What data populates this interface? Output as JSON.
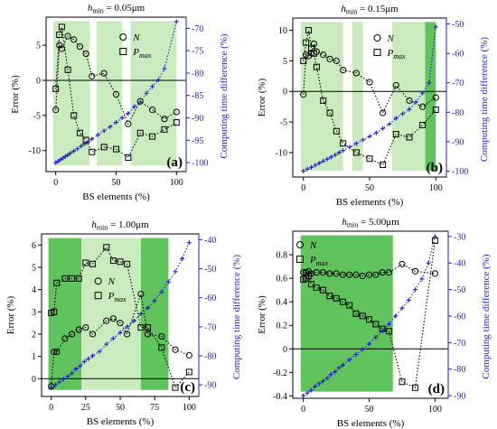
{
  "figure_title": "",
  "chart_data": [
    {
      "type": "line",
      "panel_label": "(a)",
      "title_var": "h",
      "title_sub": "min",
      "title_rest": " = 0.05μm",
      "xlabel": "BS elements (%)",
      "ylabel": "Error (%)",
      "y2label": "Computing time difference (%)",
      "xlim": [
        -8,
        108
      ],
      "ylim": [
        -13,
        9
      ],
      "y2lim": [
        -102,
        -67.5
      ],
      "xticks": [
        0,
        50,
        100
      ],
      "yticks": [
        -10,
        -5,
        0,
        5
      ],
      "y2ticks": [
        -100,
        -95,
        -90,
        -85,
        -80,
        -75,
        -70
      ],
      "legend_position": "top-center",
      "shades": [
        {
          "x0": -2,
          "x1": 28,
          "color": "#c9ebbe"
        },
        {
          "x0": 34,
          "x1": 55,
          "color": "#c9ebbe"
        },
        {
          "x0": 62,
          "x1": 100,
          "color": "#c9ebbe"
        }
      ],
      "series": [
        {
          "name": "N",
          "marker": "circle",
          "axis": "left",
          "x": [
            0,
            3,
            5,
            10,
            15,
            20,
            25,
            30,
            40,
            50,
            60,
            70,
            80,
            90,
            100
          ],
          "y": [
            -4.2,
            5.0,
            4.5,
            6.3,
            5.8,
            4.8,
            3.8,
            0.6,
            1.0,
            -2.0,
            -6.2,
            -3.0,
            -4.2,
            -5.5,
            -4.5
          ]
        },
        {
          "name": "P",
          "name_sub": "max",
          "marker": "square",
          "axis": "left",
          "x": [
            0,
            3,
            5,
            10,
            15,
            20,
            25,
            30,
            40,
            50,
            60,
            70,
            80,
            90,
            100
          ],
          "y": [
            -1.2,
            6.5,
            7.6,
            1.5,
            -5.0,
            -7.5,
            -8.5,
            -10.2,
            -9.5,
            -9.8,
            -11.0,
            -7.5,
            -8.0,
            -7.0,
            -6.0
          ]
        },
        {
          "name": "",
          "marker": "plus",
          "axis": "right",
          "x": [
            0,
            2,
            4,
            6,
            8,
            10,
            12,
            15,
            18,
            21,
            24,
            27,
            30,
            35,
            40,
            45,
            50,
            55,
            60,
            65,
            70,
            75,
            80,
            85,
            90,
            100
          ],
          "y": [
            -100,
            -99.7,
            -99.3,
            -99,
            -98.6,
            -98.3,
            -97.9,
            -97.4,
            -96.9,
            -96.3,
            -95.8,
            -95.3,
            -94.7,
            -93.8,
            -92.9,
            -92,
            -91,
            -90,
            -89,
            -87.5,
            -86.5,
            -84.5,
            -83,
            -81.5,
            -79,
            -68.5
          ]
        }
      ],
      "hline": 0
    },
    {
      "type": "line",
      "panel_label": "(b)",
      "title_var": "h",
      "title_sub": "min",
      "title_rest": " = 0.15μm",
      "xlabel": "BS elements (%)",
      "ylabel": "Error (%)",
      "y2label": "Computing time difference (%)",
      "xlim": [
        -8,
        108
      ],
      "ylim": [
        -14,
        12
      ],
      "y2lim": [
        -102,
        -48
      ],
      "xticks": [
        0,
        50,
        100
      ],
      "yticks": [
        -10,
        -5,
        0,
        5,
        10
      ],
      "y2ticks": [
        -100,
        -90,
        -80,
        -70,
        -60,
        -50
      ],
      "legend_position": "top-center",
      "shades": [
        {
          "x0": -2,
          "x1": 30,
          "color": "#c9ebbe"
        },
        {
          "x0": 37,
          "x1": 45,
          "color": "#c9ebbe"
        },
        {
          "x0": 67,
          "x1": 92,
          "color": "#c9ebbe"
        },
        {
          "x0": 92,
          "x1": 100,
          "color": "#5fc45b"
        }
      ],
      "series": [
        {
          "name": "N",
          "marker": "circle",
          "axis": "left",
          "x": [
            0,
            2,
            4,
            6,
            8,
            10,
            15,
            20,
            25,
            30,
            40,
            50,
            60,
            70,
            80,
            90,
            100
          ],
          "y": [
            -0.5,
            6.0,
            5.8,
            6.3,
            7.8,
            6.5,
            6.0,
            5.3,
            5.0,
            3.5,
            3.0,
            1.5,
            -3.5,
            1.0,
            -1.5,
            -2.5,
            -1.0
          ]
        },
        {
          "name": "P",
          "name_sub": "max",
          "marker": "square",
          "axis": "left",
          "x": [
            0,
            2,
            4,
            6,
            8,
            10,
            15,
            20,
            25,
            30,
            40,
            50,
            60,
            70,
            80,
            90,
            100
          ],
          "y": [
            5.0,
            8.0,
            10.0,
            7.0,
            6.2,
            4.0,
            -1.5,
            -3.5,
            -6.5,
            -8.5,
            -10.0,
            -11.0,
            -12.0,
            -7.0,
            -7.5,
            -5.5,
            -3.0
          ]
        },
        {
          "name": "",
          "marker": "plus",
          "axis": "right",
          "x": [
            0,
            3,
            6,
            9,
            12,
            15,
            18,
            21,
            24,
            27,
            30,
            35,
            40,
            45,
            50,
            55,
            60,
            65,
            70,
            75,
            80,
            85,
            90,
            95,
            100
          ],
          "y": [
            -100,
            -99.3,
            -98.7,
            -98,
            -97.3,
            -96.6,
            -95.9,
            -95.2,
            -94.5,
            -93.7,
            -93,
            -91.8,
            -90.6,
            -89.4,
            -88.2,
            -87,
            -85.5,
            -84,
            -82,
            -80.5,
            -79,
            -76.5,
            -73.5,
            -70,
            -51
          ]
        }
      ],
      "hline": 0
    },
    {
      "type": "line",
      "panel_label": "(c)",
      "title_var": "h",
      "title_sub": "min",
      "title_rest": " = 1.00μm",
      "xlabel": "BS elements (%)",
      "ylabel": "Error (%)",
      "y2label": "Computing time difference (%)",
      "xlim": [
        -7,
        107
      ],
      "ylim": [
        -0.8,
        6.5
      ],
      "y2lim": [
        -94,
        -38
      ],
      "xticks": [
        0,
        25,
        50,
        75,
        100
      ],
      "yticks": [
        0,
        1,
        2,
        3,
        4,
        5,
        6
      ],
      "y2ticks": [
        -90,
        -80,
        -70,
        -60,
        -50,
        -40
      ],
      "legend_position": "center",
      "shades": [
        {
          "x0": -2,
          "x1": 22,
          "color": "#5fc45b"
        },
        {
          "x0": 22,
          "x1": 65,
          "color": "#c9ebbe"
        },
        {
          "x0": 65,
          "x1": 85,
          "color": "#5fc45b"
        }
      ],
      "series": [
        {
          "name": "N",
          "marker": "circle",
          "axis": "left",
          "x": [
            0,
            2,
            4,
            10,
            15,
            20,
            25,
            30,
            40,
            45,
            50,
            55,
            65,
            70,
            80,
            90,
            100
          ],
          "y": [
            -0.35,
            1.2,
            1.2,
            1.8,
            2.0,
            2.2,
            2.3,
            2.0,
            2.6,
            2.7,
            2.5,
            2.0,
            3.8,
            2.0,
            1.9,
            1.3,
            1.05
          ]
        },
        {
          "name": "P",
          "name_sub": "max",
          "marker": "square",
          "axis": "left",
          "x": [
            0,
            2,
            4,
            10,
            15,
            20,
            25,
            30,
            40,
            45,
            50,
            55,
            65,
            70,
            80,
            90,
            100
          ],
          "y": [
            2.95,
            3.0,
            4.3,
            4.5,
            4.5,
            4.5,
            5.2,
            5.15,
            5.9,
            5.3,
            5.25,
            5.15,
            2.3,
            2.3,
            1.4,
            -0.4,
            0.3
          ]
        },
        {
          "name": "",
          "marker": "plus",
          "axis": "right",
          "x": [
            0,
            3,
            6,
            9,
            12,
            15,
            18,
            21,
            24,
            27,
            30,
            35,
            40,
            45,
            50,
            55,
            60,
            65,
            70,
            75,
            80,
            85,
            90,
            95,
            100
          ],
          "y": [
            -91,
            -90,
            -89,
            -88,
            -87,
            -86,
            -84.5,
            -83.5,
            -82,
            -81,
            -80,
            -78.5,
            -76,
            -74,
            -72,
            -70,
            -68,
            -65.5,
            -63.5,
            -61,
            -58,
            -54.5,
            -51,
            -46.5,
            -41
          ]
        }
      ],
      "hline": 0
    },
    {
      "type": "line",
      "panel_label": "(d)",
      "title_var": "h",
      "title_sub": "min",
      "title_rest": " = 5.00μm",
      "xlabel": "BS elements (%)",
      "ylabel": "Error (%)",
      "y2label": "Computing time difference (%)",
      "xlim": [
        -8,
        110
      ],
      "ylim": [
        -0.42,
        1.0
      ],
      "y2lim": [
        -91,
        -28
      ],
      "xticks": [
        0,
        50,
        100
      ],
      "yticks": [
        -0.4,
        -0.2,
        0,
        0.2,
        0.4,
        0.6,
        0.8
      ],
      "y2ticks": [
        -90,
        -80,
        -70,
        -60,
        -50,
        -40,
        -30
      ],
      "legend_position": "top-left",
      "shades": [
        {
          "x0": -2,
          "x1": 68,
          "color": "#5fc45b"
        }
      ],
      "series": [
        {
          "name": "N",
          "marker": "circle",
          "axis": "left",
          "x": [
            0,
            2,
            4,
            6,
            10,
            15,
            20,
            25,
            30,
            35,
            40,
            45,
            50,
            55,
            60,
            65,
            75,
            85,
            100
          ],
          "y": [
            0.65,
            0.65,
            0.66,
            0.64,
            0.65,
            0.65,
            0.64,
            0.64,
            0.63,
            0.63,
            0.63,
            0.62,
            0.63,
            0.63,
            0.65,
            0.65,
            0.72,
            0.66,
            0.64
          ]
        },
        {
          "name": "P",
          "name_sub": "max",
          "marker": "square",
          "axis": "left",
          "x": [
            0,
            2,
            4,
            6,
            10,
            15,
            20,
            25,
            30,
            35,
            40,
            45,
            50,
            55,
            60,
            65,
            75,
            85,
            100
          ],
          "y": [
            0.59,
            0.6,
            0.62,
            0.55,
            0.52,
            0.5,
            0.45,
            0.43,
            0.4,
            0.37,
            0.3,
            0.28,
            0.25,
            0.21,
            0.17,
            0.15,
            -0.28,
            -0.33,
            0.92
          ]
        },
        {
          "name": "",
          "marker": "plus",
          "axis": "right",
          "x": [
            0,
            3,
            6,
            9,
            12,
            15,
            18,
            21,
            24,
            27,
            30,
            35,
            40,
            45,
            50,
            55,
            60,
            65,
            70,
            75,
            80,
            85,
            90,
            95,
            100
          ],
          "y": [
            -90,
            -89,
            -88,
            -86.5,
            -85.5,
            -84.5,
            -83.5,
            -82,
            -81,
            -79.5,
            -78.5,
            -76.5,
            -74.5,
            -72.5,
            -70.5,
            -68,
            -65.5,
            -63,
            -60,
            -57,
            -54,
            -50,
            -46,
            -40,
            -30
          ]
        }
      ],
      "hline": 0
    }
  ]
}
